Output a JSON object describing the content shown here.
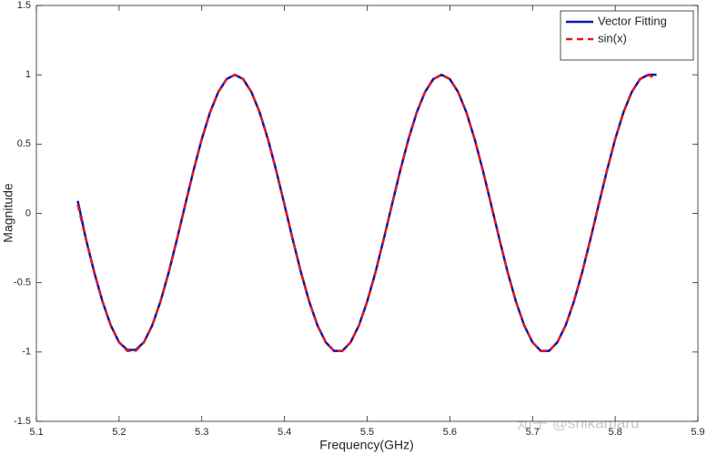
{
  "chart_data": {
    "type": "line",
    "xlabel": "Frequency(GHz)",
    "ylabel": "Magnitude",
    "watermark": "知乎 @shikamaru",
    "legend": "upper right",
    "xlim": [
      5.1,
      5.9
    ],
    "xticks": [
      5.1,
      5.2,
      5.3,
      5.4,
      5.5,
      5.6,
      5.7,
      5.8,
      5.9
    ],
    "ylim": [
      -1.5,
      1.5
    ],
    "yticks": [
      -1.5,
      -1,
      -0.5,
      0,
      0.5,
      1,
      1.5
    ],
    "x": [
      5.15,
      5.16,
      5.17,
      5.18,
      5.19,
      5.2,
      5.21,
      5.22,
      5.23,
      5.24,
      5.25,
      5.26,
      5.27,
      5.28,
      5.29,
      5.3,
      5.31,
      5.32,
      5.33,
      5.34,
      5.35,
      5.36,
      5.37,
      5.38,
      5.39,
      5.4,
      5.41,
      5.42,
      5.43,
      5.44,
      5.45,
      5.46,
      5.47,
      5.48,
      5.49,
      5.5,
      5.51,
      5.52,
      5.53,
      5.54,
      5.55,
      5.56,
      5.57,
      5.58,
      5.59,
      5.6,
      5.61,
      5.62,
      5.63,
      5.64,
      5.65,
      5.66,
      5.67,
      5.68,
      5.69,
      5.7,
      5.71,
      5.72,
      5.73,
      5.74,
      5.75,
      5.76,
      5.77,
      5.78,
      5.79,
      5.8,
      5.81,
      5.82,
      5.83,
      5.84,
      5.85
    ],
    "series": [
      {
        "name": "Vector Fitting",
        "color": "#0a14b4",
        "style": "solid",
        "values": [
          0.09,
          -0.187,
          -0.426,
          -0.637,
          -0.809,
          -0.93,
          -0.985,
          -0.985,
          -0.93,
          -0.809,
          -0.637,
          -0.426,
          -0.187,
          0.063,
          0.309,
          0.536,
          0.729,
          0.876,
          0.969,
          1,
          0.969,
          0.876,
          0.729,
          0.536,
          0.309,
          0.063,
          -0.187,
          -0.426,
          -0.637,
          -0.809,
          -0.93,
          -0.992,
          -0.992,
          -0.93,
          -0.809,
          -0.637,
          -0.426,
          -0.187,
          0.063,
          0.309,
          0.536,
          0.729,
          0.876,
          0.969,
          1,
          0.969,
          0.876,
          0.729,
          0.536,
          0.309,
          0.063,
          -0.187,
          -0.426,
          -0.637,
          -0.809,
          -0.93,
          -0.992,
          -0.992,
          -0.93,
          -0.809,
          -0.637,
          -0.426,
          -0.187,
          0.063,
          0.309,
          0.536,
          0.729,
          0.876,
          0.969,
          1,
          1
        ]
      },
      {
        "name": "sin(x)",
        "color": "#e0191c",
        "style": "dashed",
        "values": [
          0.063,
          -0.187,
          -0.426,
          -0.637,
          -0.809,
          -0.93,
          -0.992,
          -0.992,
          -0.93,
          -0.809,
          -0.637,
          -0.426,
          -0.187,
          0.063,
          0.309,
          0.536,
          0.729,
          0.876,
          0.969,
          1,
          0.969,
          0.876,
          0.729,
          0.536,
          0.309,
          0.063,
          -0.187,
          -0.426,
          -0.637,
          -0.809,
          -0.93,
          -0.992,
          -0.992,
          -0.93,
          -0.809,
          -0.637,
          -0.426,
          -0.187,
          0.063,
          0.309,
          0.536,
          0.729,
          0.876,
          0.969,
          1,
          0.969,
          0.876,
          0.729,
          0.536,
          0.309,
          0.063,
          -0.187,
          -0.426,
          -0.637,
          -0.809,
          -0.93,
          -0.992,
          -0.992,
          -0.93,
          -0.809,
          -0.637,
          -0.426,
          -0.187,
          0.063,
          0.309,
          0.536,
          0.729,
          0.876,
          0.969,
          1,
          0.969
        ]
      }
    ]
  }
}
